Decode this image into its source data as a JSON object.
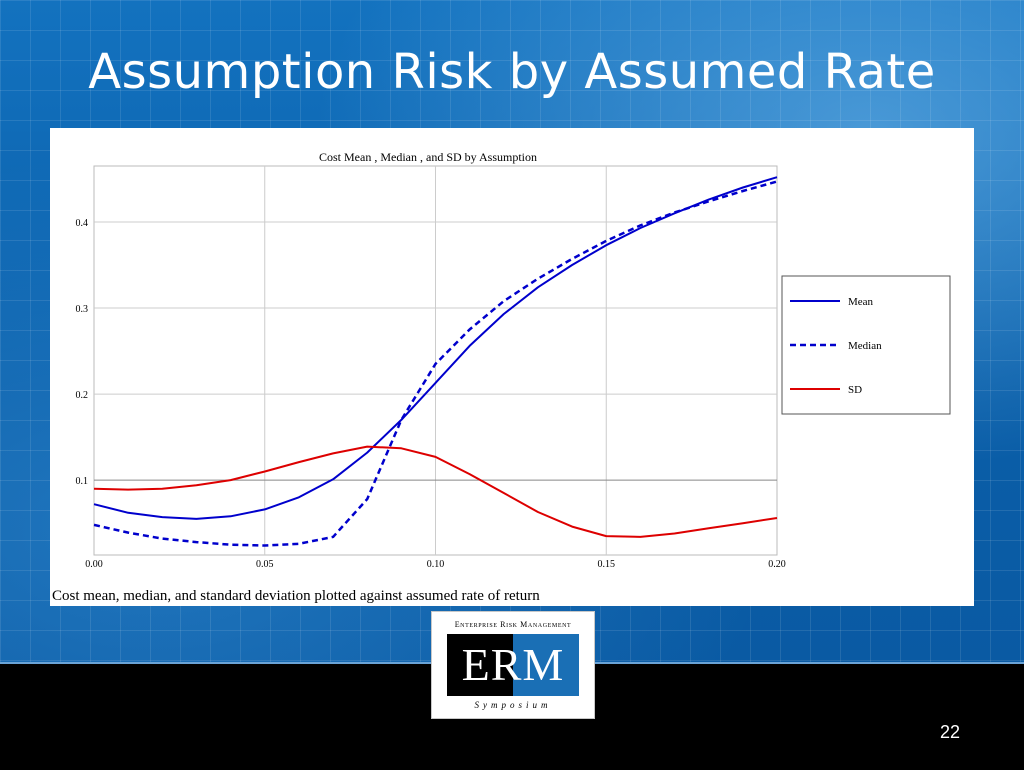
{
  "slide": {
    "title": "Assumption Risk by Assumed Rate",
    "number": "22",
    "caption": "Cost mean, median, and standard deviation plotted against assumed rate of return"
  },
  "logo": {
    "top_text": "Enterprise Risk Management",
    "letters": "ERM",
    "bottom_text": "Symposium"
  },
  "chart_data": {
    "type": "line",
    "title": "Cost  Mean , Median , and  SD by  Assumption",
    "xlabel": "",
    "ylabel": "",
    "xlim": [
      0.0,
      0.2
    ],
    "ylim": [
      0.013,
      0.465
    ],
    "x_ticks": [
      "0.00",
      "0.05",
      "0.10",
      "0.15",
      "0.20"
    ],
    "x_tick_values": [
      0.0,
      0.05,
      0.1,
      0.15,
      0.2
    ],
    "y_ticks": [
      "0.1",
      "0.2",
      "0.3",
      "0.4"
    ],
    "y_tick_values": [
      0.1,
      0.2,
      0.3,
      0.4
    ],
    "grid": true,
    "legend_position": "right",
    "x": [
      0.0,
      0.01,
      0.02,
      0.03,
      0.04,
      0.05,
      0.06,
      0.07,
      0.08,
      0.09,
      0.1,
      0.11,
      0.12,
      0.13,
      0.14,
      0.15,
      0.16,
      0.17,
      0.18,
      0.19,
      0.2
    ],
    "series": [
      {
        "name": "Mean",
        "color": "#0000cc",
        "dash": "solid",
        "values": [
          0.072,
          0.062,
          0.057,
          0.055,
          0.058,
          0.066,
          0.08,
          0.101,
          0.132,
          0.17,
          0.213,
          0.256,
          0.293,
          0.324,
          0.35,
          0.373,
          0.393,
          0.41,
          0.426,
          0.44,
          0.452
        ]
      },
      {
        "name": "Median",
        "color": "#0000cc",
        "dash": "dashed",
        "values": [
          0.048,
          0.039,
          0.032,
          0.028,
          0.025,
          0.024,
          0.026,
          0.034,
          0.078,
          0.17,
          0.235,
          0.275,
          0.308,
          0.334,
          0.357,
          0.378,
          0.396,
          0.411,
          0.424,
          0.436,
          0.447
        ]
      },
      {
        "name": "SD",
        "color": "#dd0000",
        "dash": "solid",
        "values": [
          0.09,
          0.089,
          0.09,
          0.094,
          0.1,
          0.11,
          0.121,
          0.131,
          0.139,
          0.137,
          0.127,
          0.107,
          0.085,
          0.063,
          0.046,
          0.035,
          0.034,
          0.038,
          0.044,
          0.05,
          0.056
        ]
      }
    ]
  }
}
